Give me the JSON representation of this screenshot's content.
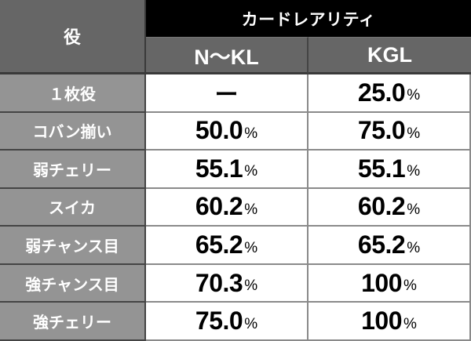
{
  "header": {
    "role_label": "役",
    "group_label": "カードレアリティ",
    "columns": [
      "N〜KL",
      "KGL"
    ]
  },
  "rows": [
    {
      "label": "１枚役",
      "n_kl": "ー",
      "n_kl_pct": "",
      "kgl": "25.0",
      "kgl_pct": "%"
    },
    {
      "label": "コバン揃い",
      "n_kl": "50.0",
      "n_kl_pct": "%",
      "kgl": "75.0",
      "kgl_pct": "%"
    },
    {
      "label": "弱チェリー",
      "n_kl": "55.1",
      "n_kl_pct": "%",
      "kgl": "55.1",
      "kgl_pct": "%"
    },
    {
      "label": "スイカ",
      "n_kl": "60.2",
      "n_kl_pct": "%",
      "kgl": "60.2",
      "kgl_pct": "%"
    },
    {
      "label": "弱チャンス目",
      "n_kl": "65.2",
      "n_kl_pct": "%",
      "kgl": "65.2",
      "kgl_pct": "%"
    },
    {
      "label": "強チャンス目",
      "n_kl": "70.3",
      "n_kl_pct": "%",
      "kgl": "100",
      "kgl_pct": "%"
    },
    {
      "label": "強チェリー",
      "n_kl": "75.0",
      "n_kl_pct": "%",
      "kgl": "100",
      "kgl_pct": "%"
    }
  ],
  "colors": {
    "header_black": "#000000",
    "header_gray": "#666666",
    "row_label_gray": "#949494",
    "value_bg": "#ffffff",
    "text_dark": "#000000",
    "text_light": "#ffffff"
  }
}
